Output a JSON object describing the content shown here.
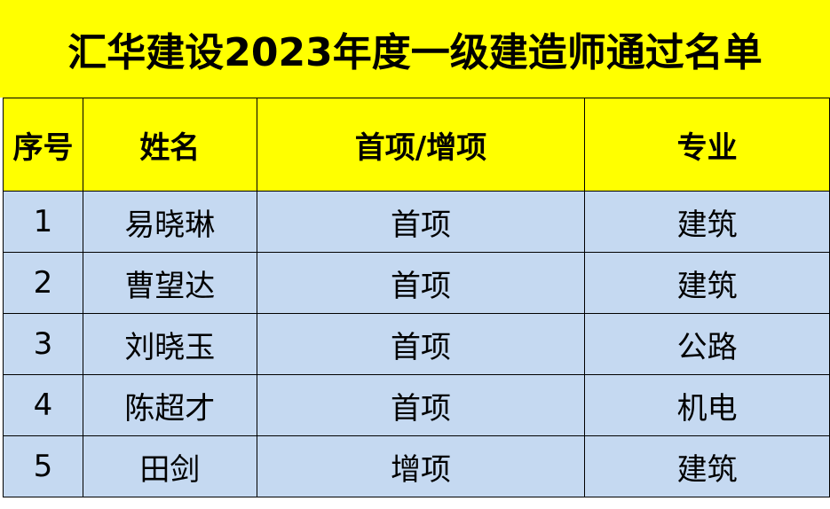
{
  "title": "汇华建设2023年度一级建造师通过名单",
  "headers": [
    "序号",
    "姓名",
    "首项/增项",
    "专业"
  ],
  "rows": [
    [
      "1",
      "易晓琳",
      "首项",
      "建筑"
    ],
    [
      "2",
      "曹望达",
      "首项",
      "建筑"
    ],
    [
      "3",
      "刘晓玉",
      "首项",
      "公路"
    ],
    [
      "4",
      "陈超才",
      "首项",
      "机电"
    ],
    [
      "5",
      "田剑",
      "增项",
      "建筑"
    ]
  ],
  "colors": {
    "header_bg": "#ffff00",
    "row_bg": "#c5d9f1"
  }
}
